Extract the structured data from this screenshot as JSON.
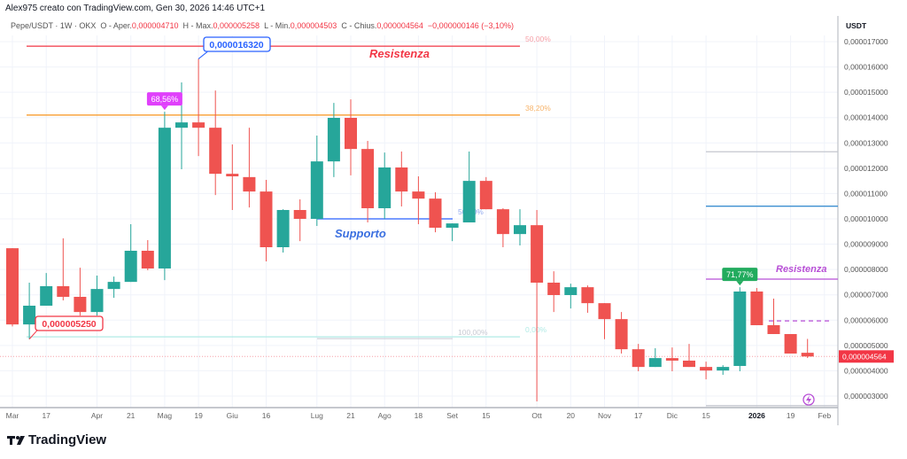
{
  "header": {
    "credit": "Alex975 creato con TradingView.com, Gen 30, 2026 14:46 UTC+1",
    "symbol": "Pepe/USDT · 1W · OKX",
    "open_label": "O - Aper.",
    "open": "0,000004710",
    "high_label": "H - Max.",
    "high": "0,000005258",
    "low_label": "L - Min.",
    "low": "0,000004503",
    "close_label": "C - Chius.",
    "close": "0,000004564",
    "change": "−0,000000146 (−3,10%)"
  },
  "logo": {
    "text": "TradingView",
    "icon": "tradingview-logo-icon"
  },
  "colors": {
    "up": "#26a69a",
    "down": "#ef5350",
    "resistance": "#f23645",
    "fib382": "#f7931a",
    "support": "#2962ff",
    "purple": "#b84fd6",
    "tag68": "#e040fb",
    "tag71": "#22ab5e"
  },
  "chart_data": {
    "type": "candlestick",
    "y_axis_unit": "USDT",
    "ylim": [
      2.6e-06,
      1.72e-05
    ],
    "y_ticks": [
      "0,000017000",
      "0,000016000",
      "0,000015000",
      "0,000014000",
      "0,000013000",
      "0,000012000",
      "0,000011000",
      "0,000010000",
      "0,000009000",
      "0,000008000",
      "0,000007000",
      "0,000006000",
      "0,000005000",
      "0,000004000",
      "0,000003000"
    ],
    "y_tick_values": [
      1.7e-05,
      1.6e-05,
      1.5e-05,
      1.4e-05,
      1.3e-05,
      1.2e-05,
      1.1e-05,
      1e-05,
      9e-06,
      8e-06,
      7e-06,
      6e-06,
      5e-06,
      4e-06,
      3e-06
    ],
    "x_ticks": [
      {
        "label": "Mar",
        "bar": 0
      },
      {
        "label": "17",
        "bar": 2
      },
      {
        "label": "Apr",
        "bar": 5
      },
      {
        "label": "21",
        "bar": 7
      },
      {
        "label": "Mag",
        "bar": 9
      },
      {
        "label": "19",
        "bar": 11
      },
      {
        "label": "Giu",
        "bar": 13
      },
      {
        "label": "16",
        "bar": 15
      },
      {
        "label": "Lug",
        "bar": 18
      },
      {
        "label": "21",
        "bar": 20
      },
      {
        "label": "Ago",
        "bar": 22
      },
      {
        "label": "18",
        "bar": 24
      },
      {
        "label": "Set",
        "bar": 26
      },
      {
        "label": "15",
        "bar": 28
      },
      {
        "label": "Ott",
        "bar": 31
      },
      {
        "label": "20",
        "bar": 33
      },
      {
        "label": "Nov",
        "bar": 35
      },
      {
        "label": "17",
        "bar": 37
      },
      {
        "label": "Dic",
        "bar": 39
      },
      {
        "label": "15",
        "bar": 41
      },
      {
        "label": "2026",
        "bar": 44,
        "bold": true
      },
      {
        "label": "19",
        "bar": 46
      },
      {
        "label": "Feb",
        "bar": 48
      }
    ],
    "candles": [
      [
        8.84e-06,
        8.84e-06,
        5.75e-06,
        5.83e-06
      ],
      [
        5.83e-06,
        7.48e-06,
        5.25e-06,
        6.57e-06
      ],
      [
        6.57e-06,
        7.86e-06,
        6.57e-06,
        7.34e-06
      ],
      [
        7.34e-06,
        9.23e-06,
        6.78e-06,
        6.92e-06
      ],
      [
        6.92e-06,
        8.07e-06,
        6.18e-06,
        6.32e-06
      ],
      [
        6.32e-06,
        7.76e-06,
        6.18e-06,
        7.23e-06
      ],
      [
        7.23e-06,
        7.72e-06,
        6.88e-06,
        7.51e-06
      ],
      [
        7.51e-06,
        9.79e-06,
        7.51e-06,
        8.74e-06
      ],
      [
        8.74e-06,
        9.16e-06,
        7.97e-06,
        8.04e-06
      ],
      [
        8.04e-06,
        1.423e-05,
        7.58e-06,
        1.36e-05
      ],
      [
        1.36e-05,
        1.539e-05,
        1.196e-05,
        1.381e-05
      ],
      [
        1.381e-05,
        1.632e-05,
        1.248e-05,
        1.36e-05
      ],
      [
        1.36e-05,
        1.507e-05,
        1.094e-05,
        1.178e-05
      ],
      [
        1.178e-05,
        1.294e-05,
        1.035e-05,
        1.168e-05
      ],
      [
        1.165e-05,
        1.36e-05,
        1.045e-05,
        1.108e-05
      ],
      [
        1.108e-05,
        1.154e-05,
        8.32e-06,
        8.88e-06
      ],
      [
        8.88e-06,
        1.038e-05,
        8.67e-06,
        1.035e-05
      ],
      [
        1.035e-05,
        1.077e-05,
        9.12e-06,
        1e-05
      ],
      [
        1e-05,
        1.329e-05,
        9.72e-06,
        1.227e-05
      ],
      [
        1.227e-05,
        1.458e-05,
        1.165e-05,
        1.399e-05
      ],
      [
        1.399e-05,
        1.472e-05,
        1.172e-05,
        1.276e-05
      ],
      [
        1.276e-05,
        1.308e-05,
        9.86e-06,
        1.042e-05
      ],
      [
        1.042e-05,
        1.262e-05,
        1e-05,
        1.203e-05
      ],
      [
        1.203e-05,
        1.266e-05,
        1.049e-05,
        1.108e-05
      ],
      [
        1.108e-05,
        1.168e-05,
        9.79e-06,
        1.08e-05
      ],
      [
        1.08e-05,
        1.105e-05,
        9.47e-06,
        9.65e-06
      ],
      [
        9.65e-06,
        9.82e-06,
        9.12e-06,
        9.82e-06
      ],
      [
        9.86e-06,
        1.266e-05,
        9.86e-06,
        1.15e-05
      ],
      [
        1.15e-05,
        1.165e-05,
        1.038e-05,
        1.038e-05
      ],
      [
        1.038e-05,
        1.042e-05,
        8.88e-06,
        9.4e-06
      ],
      [
        9.4e-06,
        1.038e-05,
        8.95e-06,
        9.75e-06
      ],
      [
        9.75e-06,
        1.035e-05,
        2.79e-06,
        7.48e-06
      ],
      [
        7.48e-06,
        7.93e-06,
        6.32e-06,
        6.99e-06
      ],
      [
        6.99e-06,
        7.44e-06,
        6.46e-06,
        7.3e-06
      ],
      [
        7.3e-06,
        7.37e-06,
        6.29e-06,
        6.67e-06
      ],
      [
        6.67e-06,
        6.67e-06,
        5.25e-06,
        6.04e-06
      ],
      [
        6.04e-06,
        6.32e-06,
        4.68e-06,
        4.85e-06
      ],
      [
        4.85e-06,
        5.06e-06,
        3.98e-06,
        4.15e-06
      ],
      [
        4.15e-06,
        4.89e-06,
        4.15e-06,
        4.5e-06
      ],
      [
        4.5e-06,
        4.92e-06,
        3.98e-06,
        4.4e-06
      ],
      [
        4.4e-06,
        5.06e-06,
        4.15e-06,
        4.15e-06
      ],
      [
        4.15e-06,
        4.36e-06,
        3.66e-06,
        4.01e-06
      ],
      [
        4.01e-06,
        4.22e-06,
        3.84e-06,
        4.15e-06
      ],
      [
        4.19e-06,
        7.3e-06,
        3.98e-06,
        7.13e-06
      ],
      [
        7.13e-06,
        7.27e-06,
        5.8e-06,
        5.8e-06
      ],
      [
        5.8e-06,
        6.85e-06,
        5.45e-06,
        5.45e-06
      ],
      [
        5.45e-06,
        5.45e-06,
        4.68e-06,
        4.68e-06
      ],
      [
        4.71e-06,
        5.258e-06,
        4.503e-06,
        4.564e-06
      ]
    ],
    "candle_format": [
      "open",
      "high",
      "low",
      "close"
    ],
    "last_price_label": "0,000004564",
    "annotations": {
      "high_callout": {
        "text": "0,000016320",
        "bar": 11,
        "price": 1.632e-05
      },
      "low_callout": {
        "text": "0,000005250",
        "bar": 1,
        "price": 5.25e-06
      },
      "tag_68": {
        "text": "68,56%",
        "bar": 9,
        "price": 1.423e-05
      },
      "tag_71": {
        "text": "71,77%",
        "bar": 43,
        "price": 7.3e-06
      },
      "resistance_top": {
        "text": "Resistenza",
        "price": 1.682e-05,
        "pct": "50,00%"
      },
      "fib_382": {
        "text": "38,20%",
        "price": 1.41e-05
      },
      "support": {
        "text": "Supporto",
        "price": 1e-05,
        "pct": "50,00%"
      },
      "fib_100": {
        "text": "100,00%",
        "price": 5.34e-06
      },
      "fib_0": {
        "text": "0,00%"
      },
      "resistance_right": {
        "text": "Resistenza",
        "price": 7.62e-06
      },
      "dashed_right_price": 5.97e-06,
      "gray_top_right_price": 1.265e-05,
      "blue_right_price": 1.05e-05,
      "gray_bottom_right_price": 2.62e-06
    },
    "grid": true
  }
}
